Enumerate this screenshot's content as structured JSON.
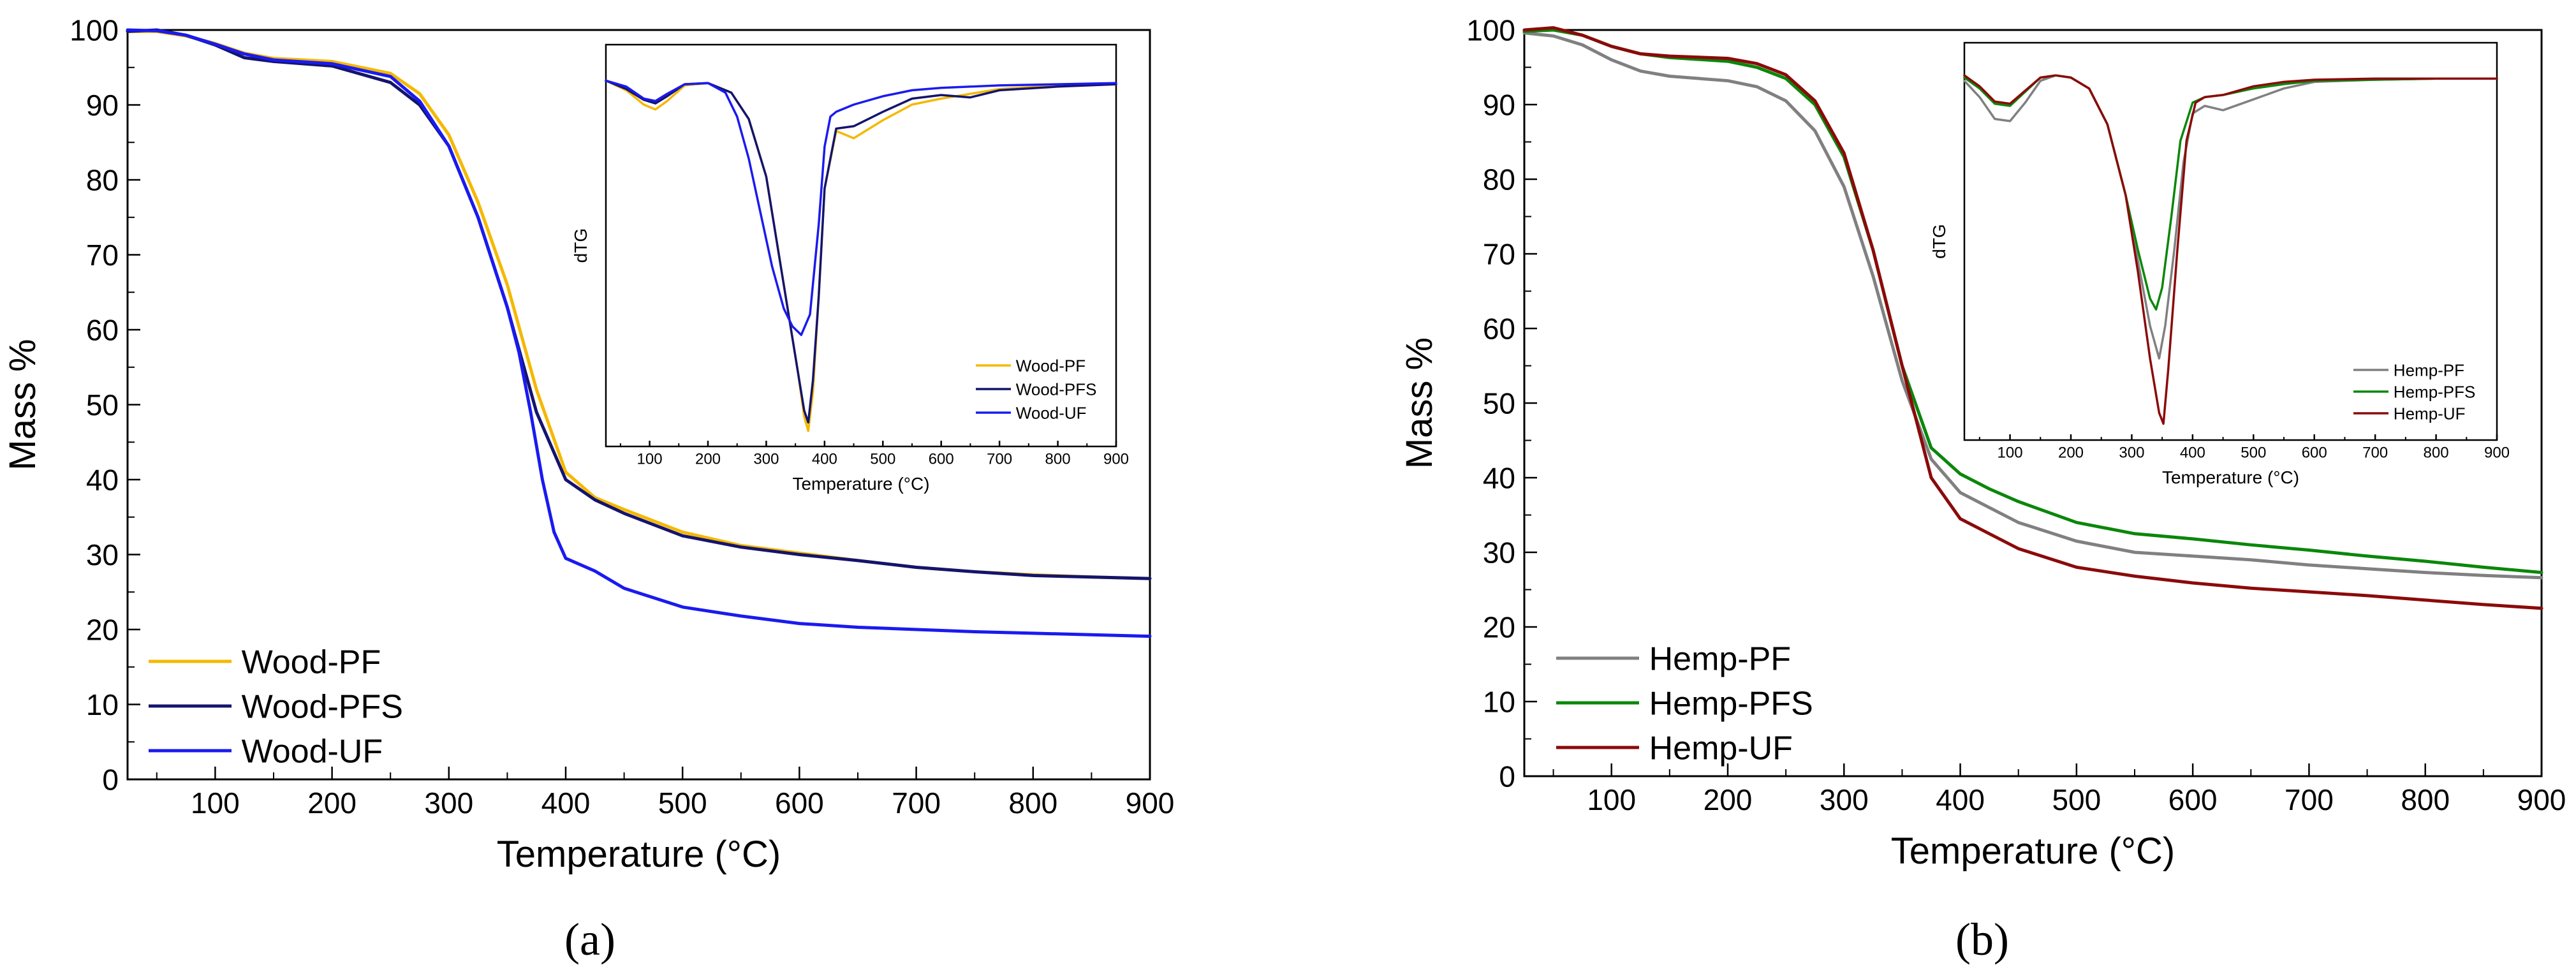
{
  "figure": {
    "panels": [
      {
        "label_text": "(a)",
        "label_letter": "a"
      },
      {
        "label_text": "(b)",
        "label_letter": "b"
      }
    ]
  },
  "chart_data": [
    {
      "id": "a-main",
      "type": "line",
      "xlabel": "Temperature (°C)",
      "ylabel": "Mass %",
      "xlim": [
        25,
        900
      ],
      "ylim": [
        0,
        100
      ],
      "xticks": [
        100,
        200,
        300,
        400,
        500,
        600,
        700,
        800,
        900
      ],
      "yticks": [
        0,
        10,
        20,
        30,
        40,
        50,
        60,
        70,
        80,
        90,
        100
      ],
      "grid": false,
      "legend_position": "bottom-left",
      "series": [
        {
          "name": "Wood-PF",
          "color": "#F5B800",
          "x": [
            25,
            50,
            75,
            100,
            125,
            150,
            200,
            250,
            275,
            300,
            325,
            350,
            375,
            400,
            425,
            450,
            500,
            550,
            600,
            650,
            700,
            750,
            800,
            850,
            900
          ],
          "y": [
            99.8,
            99.8,
            99.2,
            98.2,
            96.9,
            96.2,
            95.8,
            94.2,
            91.5,
            86.0,
            77.0,
            66.0,
            52.0,
            41.0,
            37.6,
            36.0,
            33.0,
            31.2,
            30.2,
            29.2,
            28.3,
            27.7,
            27.3,
            27.0,
            26.8
          ]
        },
        {
          "name": "Wood-PFS",
          "color": "#14146E",
          "x": [
            25,
            50,
            75,
            100,
            125,
            150,
            200,
            250,
            275,
            300,
            325,
            350,
            375,
            400,
            425,
            450,
            500,
            550,
            600,
            650,
            700,
            750,
            800,
            850,
            900
          ],
          "y": [
            99.8,
            100.0,
            99.3,
            98.0,
            96.3,
            95.8,
            95.2,
            93.0,
            90.0,
            84.5,
            75.0,
            63.0,
            49.0,
            40.0,
            37.3,
            35.5,
            32.5,
            31.0,
            30.0,
            29.2,
            28.3,
            27.7,
            27.2,
            27.0,
            26.8
          ]
        },
        {
          "name": "Wood-UF",
          "color": "#1A1AF0",
          "x": [
            25,
            50,
            75,
            100,
            125,
            150,
            200,
            250,
            275,
            300,
            325,
            350,
            360,
            370,
            380,
            390,
            400,
            425,
            450,
            500,
            550,
            600,
            650,
            700,
            750,
            800,
            850,
            900
          ],
          "y": [
            100.0,
            99.9,
            99.3,
            98.1,
            96.8,
            96.0,
            95.5,
            93.8,
            90.5,
            84.5,
            75.0,
            63.0,
            57.0,
            49.0,
            40.0,
            33.0,
            29.5,
            27.8,
            25.5,
            23.0,
            21.8,
            20.8,
            20.3,
            20.0,
            19.7,
            19.5,
            19.3,
            19.1
          ]
        }
      ]
    },
    {
      "id": "a-inset",
      "type": "line",
      "xlabel": "Temperature (°C)",
      "ylabel": "dTG",
      "xlim": [
        25,
        900
      ],
      "xticks": [
        100,
        200,
        300,
        400,
        500,
        600,
        700,
        800,
        900
      ],
      "legend_position": "bottom-right",
      "series": [
        {
          "name": "Wood-PF",
          "color": "#F5B800",
          "x": [
            25,
            60,
            90,
            110,
            130,
            160,
            200,
            240,
            270,
            300,
            320,
            340,
            355,
            365,
            372,
            380,
            390,
            400,
            420,
            450,
            500,
            550,
            600,
            700,
            800,
            900
          ],
          "y": [
            0.0,
            -0.08,
            -0.2,
            -0.24,
            -0.17,
            -0.04,
            -0.02,
            -0.1,
            -0.32,
            -0.8,
            -1.4,
            -2.0,
            -2.45,
            -2.8,
            -2.92,
            -2.6,
            -1.8,
            -0.9,
            -0.42,
            -0.48,
            -0.33,
            -0.2,
            -0.15,
            -0.07,
            -0.04,
            -0.03
          ]
        },
        {
          "name": "Wood-PFS",
          "color": "#14146E",
          "x": [
            25,
            60,
            90,
            110,
            130,
            160,
            200,
            240,
            270,
            300,
            320,
            340,
            355,
            365,
            372,
            380,
            390,
            400,
            420,
            450,
            500,
            550,
            600,
            650,
            700,
            800,
            900
          ],
          "y": [
            0.0,
            -0.07,
            -0.16,
            -0.19,
            -0.13,
            -0.03,
            -0.02,
            -0.1,
            -0.32,
            -0.8,
            -1.4,
            -2.0,
            -2.45,
            -2.75,
            -2.85,
            -2.5,
            -1.8,
            -0.9,
            -0.4,
            -0.38,
            -0.26,
            -0.15,
            -0.12,
            -0.14,
            -0.08,
            -0.05,
            -0.03
          ]
        },
        {
          "name": "Wood-UF",
          "color": "#1A1AF0",
          "x": [
            25,
            60,
            90,
            110,
            130,
            160,
            200,
            230,
            250,
            270,
            290,
            310,
            330,
            345,
            360,
            375,
            390,
            400,
            410,
            420,
            450,
            500,
            550,
            600,
            700,
            800,
            900
          ],
          "y": [
            0.0,
            -0.05,
            -0.15,
            -0.17,
            -0.11,
            -0.03,
            -0.02,
            -0.1,
            -0.3,
            -0.65,
            -1.1,
            -1.55,
            -1.9,
            -2.05,
            -2.12,
            -1.95,
            -1.2,
            -0.55,
            -0.3,
            -0.26,
            -0.2,
            -0.13,
            -0.08,
            -0.06,
            -0.04,
            -0.03,
            -0.02
          ]
        }
      ]
    },
    {
      "id": "b-main",
      "type": "line",
      "xlabel": "Temperature (°C)",
      "ylabel": "Mass %",
      "xlim": [
        25,
        900
      ],
      "ylim": [
        0,
        100
      ],
      "xticks": [
        100,
        200,
        300,
        400,
        500,
        600,
        700,
        800,
        900
      ],
      "yticks": [
        0,
        10,
        20,
        30,
        40,
        50,
        60,
        70,
        80,
        90,
        100
      ],
      "grid": false,
      "legend_position": "bottom-left",
      "series": [
        {
          "name": "Hemp-PF",
          "color": "#808080",
          "x": [
            25,
            50,
            75,
            100,
            125,
            150,
            200,
            225,
            250,
            275,
            300,
            325,
            350,
            375,
            400,
            425,
            450,
            500,
            550,
            600,
            650,
            700,
            750,
            800,
            850,
            900
          ],
          "y": [
            99.6,
            99.2,
            98.0,
            96.0,
            94.5,
            93.8,
            93.2,
            92.4,
            90.5,
            86.5,
            79.0,
            67.0,
            53.0,
            42.5,
            38.0,
            36.0,
            34.0,
            31.5,
            30.0,
            29.5,
            29.0,
            28.3,
            27.8,
            27.3,
            26.9,
            26.6
          ]
        },
        {
          "name": "Hemp-PFS",
          "color": "#0A870A",
          "x": [
            25,
            50,
            75,
            100,
            125,
            150,
            200,
            225,
            250,
            275,
            300,
            325,
            350,
            375,
            400,
            425,
            450,
            500,
            550,
            600,
            650,
            700,
            750,
            800,
            850,
            900
          ],
          "y": [
            99.8,
            100.0,
            99.3,
            97.8,
            96.8,
            96.3,
            95.8,
            95.0,
            93.5,
            90.0,
            83.0,
            70.5,
            55.0,
            44.0,
            40.5,
            38.5,
            36.8,
            34.0,
            32.5,
            31.8,
            31.0,
            30.3,
            29.5,
            28.8,
            28.0,
            27.3
          ]
        },
        {
          "name": "Hemp-UF",
          "color": "#8B0A0A",
          "x": [
            25,
            50,
            75,
            100,
            125,
            150,
            200,
            225,
            250,
            275,
            300,
            325,
            350,
            375,
            400,
            425,
            450,
            500,
            550,
            600,
            650,
            700,
            750,
            800,
            850,
            900
          ],
          "y": [
            100.0,
            100.3,
            99.3,
            97.8,
            96.8,
            96.5,
            96.2,
            95.5,
            94.0,
            90.5,
            83.5,
            70.5,
            55.0,
            40.0,
            34.5,
            32.5,
            30.5,
            28.0,
            26.8,
            25.9,
            25.2,
            24.7,
            24.2,
            23.6,
            23.0,
            22.5
          ]
        }
      ]
    },
    {
      "id": "b-inset",
      "type": "line",
      "xlabel": "Temperature (°C)",
      "ylabel": "dTG",
      "xlim": [
        25,
        900
      ],
      "xticks": [
        100,
        200,
        300,
        400,
        500,
        600,
        700,
        800,
        900
      ],
      "legend_position": "bottom-right",
      "series": [
        {
          "name": "Hemp-PF",
          "color": "#808080",
          "x": [
            25,
            50,
            75,
            100,
            125,
            150,
            175,
            200,
            230,
            260,
            290,
            310,
            330,
            345,
            355,
            370,
            385,
            400,
            420,
            450,
            500,
            550,
            600,
            700,
            800,
            900
          ],
          "y": [
            -0.05,
            -0.2,
            -0.4,
            -0.42,
            -0.25,
            -0.05,
            0.0,
            -0.02,
            -0.12,
            -0.45,
            -1.1,
            -1.7,
            -2.3,
            -2.6,
            -2.3,
            -1.6,
            -0.8,
            -0.35,
            -0.28,
            -0.32,
            -0.22,
            -0.12,
            -0.06,
            -0.04,
            -0.03,
            -0.03
          ]
        },
        {
          "name": "Hemp-PFS",
          "color": "#0A870A",
          "x": [
            25,
            50,
            75,
            100,
            125,
            150,
            175,
            200,
            230,
            260,
            290,
            310,
            330,
            340,
            350,
            365,
            380,
            400,
            420,
            450,
            500,
            550,
            600,
            700,
            800,
            900
          ],
          "y": [
            -0.02,
            -0.12,
            -0.26,
            -0.28,
            -0.15,
            -0.02,
            0.0,
            -0.02,
            -0.12,
            -0.45,
            -1.1,
            -1.6,
            -2.05,
            -2.15,
            -1.95,
            -1.3,
            -0.6,
            -0.25,
            -0.2,
            -0.18,
            -0.12,
            -0.08,
            -0.05,
            -0.04,
            -0.03,
            -0.03
          ]
        },
        {
          "name": "Hemp-UF",
          "color": "#8B0A0A",
          "x": [
            25,
            50,
            75,
            100,
            125,
            150,
            175,
            200,
            230,
            260,
            290,
            310,
            330,
            345,
            352,
            360,
            375,
            390,
            405,
            420,
            450,
            500,
            550,
            600,
            700,
            800,
            900
          ],
          "y": [
            0.0,
            -0.1,
            -0.24,
            -0.26,
            -0.14,
            -0.02,
            0.0,
            -0.02,
            -0.12,
            -0.45,
            -1.1,
            -1.8,
            -2.6,
            -3.1,
            -3.2,
            -2.7,
            -1.6,
            -0.6,
            -0.25,
            -0.2,
            -0.18,
            -0.1,
            -0.06,
            -0.04,
            -0.03,
            -0.03,
            -0.03
          ]
        }
      ]
    }
  ]
}
